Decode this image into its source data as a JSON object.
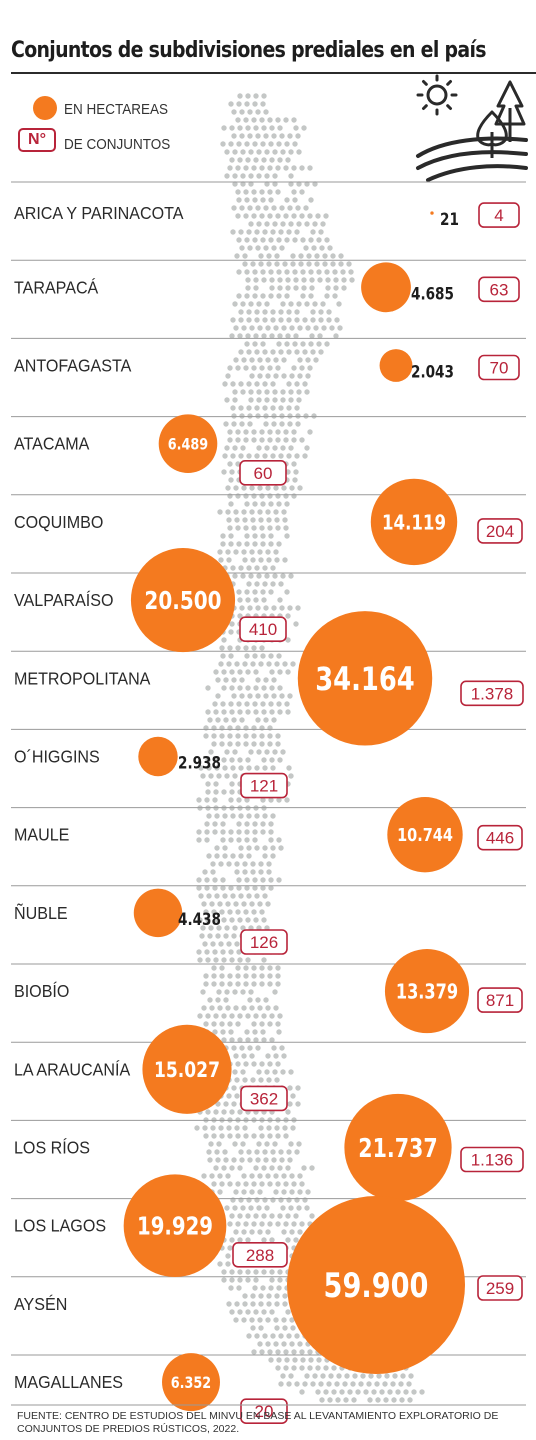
{
  "title": "Conjuntos de subdivisiones prediales en el país",
  "legend": {
    "hectares_label": "EN HECTAREAS",
    "count_badge": "N°",
    "count_label": "DE CONJUNTOS"
  },
  "icons": [
    "sun-icon",
    "trees-icon",
    "fields-icon"
  ],
  "colors": {
    "bubble": "#f47a1f",
    "badge": "#b8243a",
    "map_dots": "#c4c7c6",
    "rule": "#9a9a9a"
  },
  "chart_data": {
    "type": "bubble",
    "series": [
      {
        "name": "EN HECTAREAS"
      },
      {
        "name": "DE CONJUNTOS"
      }
    ],
    "regions": [
      {
        "name": "ARICA Y PARINACOTA",
        "hectares": 21,
        "hectares_label": "21",
        "sets": 4,
        "sets_label": "4"
      },
      {
        "name": "TARAPACÁ",
        "hectares": 4685,
        "hectares_label": "4.685",
        "sets": 63,
        "sets_label": "63"
      },
      {
        "name": "ANTOFAGASTA",
        "hectares": 2043,
        "hectares_label": "2.043",
        "sets": 70,
        "sets_label": "70"
      },
      {
        "name": "ATACAMA",
        "hectares": 6489,
        "hectares_label": "6.489",
        "sets": 60,
        "sets_label": "60"
      },
      {
        "name": "COQUIMBO",
        "hectares": 14119,
        "hectares_label": "14.119",
        "sets": 204,
        "sets_label": "204"
      },
      {
        "name": "VALPARAÍSO",
        "hectares": 20500,
        "hectares_label": "20.500",
        "sets": 410,
        "sets_label": "410"
      },
      {
        "name": "METROPOLITANA",
        "hectares": 34164,
        "hectares_label": "34.164",
        "sets": 1378,
        "sets_label": "1.378"
      },
      {
        "name": "O´HIGGINS",
        "hectares": 2938,
        "hectares_label": "2.938",
        "sets": 121,
        "sets_label": "121"
      },
      {
        "name": "MAULE",
        "hectares": 10744,
        "hectares_label": "10.744",
        "sets": 446,
        "sets_label": "446"
      },
      {
        "name": "ÑUBLE",
        "hectares": 4438,
        "hectares_label": "4.438",
        "sets": 126,
        "sets_label": "126"
      },
      {
        "name": "BIOBÍO",
        "hectares": 13379,
        "hectares_label": "13.379",
        "sets": 871,
        "sets_label": "871"
      },
      {
        "name": "LA ARAUCANÍA",
        "hectares": 15027,
        "hectares_label": "15.027",
        "sets": 362,
        "sets_label": "362"
      },
      {
        "name": "LOS RÍOS",
        "hectares": 21737,
        "hectares_label": "21.737",
        "sets": 1136,
        "sets_label": "1.136"
      },
      {
        "name": "LOS LAGOS",
        "hectares": 19929,
        "hectares_label": "19.929",
        "sets": 288,
        "sets_label": "288"
      },
      {
        "name": "AYSÉN",
        "hectares": 59900,
        "hectares_label": "59.900",
        "sets": 259,
        "sets_label": "259"
      },
      {
        "name": "MAGALLANES",
        "hectares": 6352,
        "hectares_label": "6.352",
        "sets": 20,
        "sets_label": "20"
      }
    ]
  },
  "source": "FUENTE: CENTRO DE ESTUDIOS DEL MINVU EN BASE AL LEVANTAMIENTO EXPLORATORIO DE CONJUNTOS DE PREDIOS RÚSTICOS, 2022."
}
